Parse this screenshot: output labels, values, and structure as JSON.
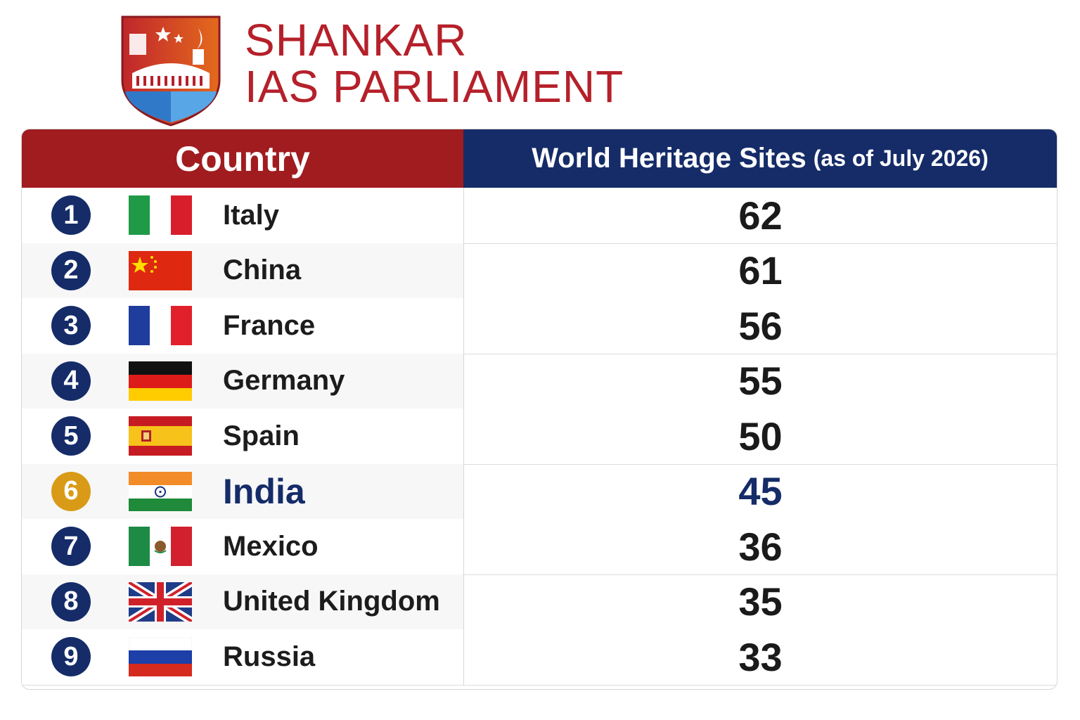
{
  "brand": {
    "line1": "SHANKAR",
    "line2": "IAS PARLIAMENT",
    "logo_icon": "shield-parliament-logo",
    "color": "#b5202a"
  },
  "chart_data": {
    "type": "table",
    "columns": [
      "Country",
      "World Heritage Sites"
    ],
    "column_sub": "(as of July 2026)",
    "rows": [
      {
        "rank": "1",
        "country": "Italy",
        "sites": 62,
        "flag": "italy-flag-icon"
      },
      {
        "rank": "2",
        "country": "China",
        "sites": 61,
        "flag": "china-flag-icon"
      },
      {
        "rank": "3",
        "country": "France",
        "sites": 56,
        "flag": "france-flag-icon"
      },
      {
        "rank": "4",
        "country": "Germany",
        "sites": 55,
        "flag": "germany-flag-icon"
      },
      {
        "rank": "5",
        "country": "Spain",
        "sites": 50,
        "flag": "spain-flag-icon"
      },
      {
        "rank": "6",
        "country": "India",
        "sites": 45,
        "flag": "india-flag-icon",
        "highlight": true
      },
      {
        "rank": "7",
        "country": "Mexico",
        "sites": 36,
        "flag": "mexico-flag-icon"
      },
      {
        "rank": "8",
        "country": "United Kingdom",
        "sites": 35,
        "flag": "uk-flag-icon"
      },
      {
        "rank": "9",
        "country": "Russia",
        "sites": 33,
        "flag": "russia-flag-icon"
      }
    ]
  },
  "colors": {
    "country_header": "#a01c1f",
    "sites_header": "#152c68",
    "rank_badge": "#152c68",
    "highlight_badge": "#d99b17",
    "highlight_text": "#152c68"
  }
}
